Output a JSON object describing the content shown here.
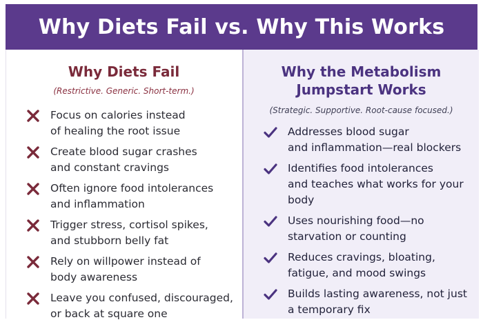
{
  "header": {
    "title": "Why Diets Fail vs. Why This Works"
  },
  "left": {
    "title": "Why Diets Fail",
    "subtitle": "(Restrictive. Generic. Short-term.)",
    "icon": "x-mark-icon",
    "color": "#7a2a3a",
    "items": [
      {
        "line1": "Focus on calories instead",
        "line2": "of healing the root issue"
      },
      {
        "line1": "Create blood sugar crashes",
        "line2": "and constant cravings"
      },
      {
        "line1": "Often ignore food intolerances",
        "line2": "and inflammation"
      },
      {
        "line1": "Trigger stress, cortisol spikes,",
        "line2": "and stubborn belly fat"
      },
      {
        "line1": "Rely on willpower instead of",
        "line2": "body awareness"
      },
      {
        "line1": "Leave you confused, discouraged,",
        "line2": "or back at square one"
      }
    ]
  },
  "right": {
    "title_line1": "Why the Metabolism",
    "title_line2": "Jumpstart Works",
    "subtitle": "(Strategic. Supportive. Root-cause focused.)",
    "icon": "check-mark-icon",
    "color": "#4b3380",
    "items": [
      {
        "line1": "Addresses blood sugar",
        "line2": "and inflammation—real blockers"
      },
      {
        "line1": "Identifies food intolerances",
        "line2": "and teaches what works for your",
        "line3": "body"
      },
      {
        "line1": "Uses nourishing food—no",
        "line2": "starvation or counting"
      },
      {
        "line1": "Reduces cravings, bloating,",
        "line2": "fatigue, and mood swings"
      },
      {
        "line1": "Builds lasting awareness, not just",
        "line2": "a temporary fix"
      }
    ]
  }
}
